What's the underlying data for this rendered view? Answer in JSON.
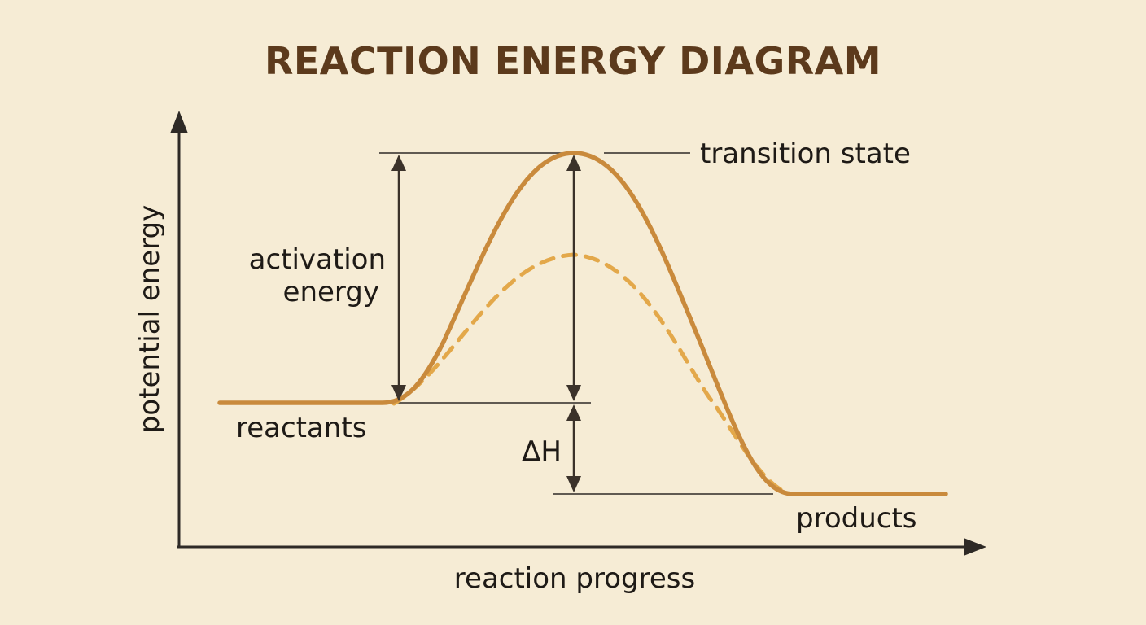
{
  "title": "REACTION ENERGY DIAGRAM",
  "axes": {
    "y_label": "potential energy",
    "x_label": "reaction progress"
  },
  "labels": {
    "transition_state": "transition state",
    "activation_energy_line1": "activation",
    "activation_energy_line2": "energy",
    "reactants": "reactants",
    "products": "products",
    "delta_h": "ΔH"
  },
  "colors": {
    "background": "#f6ecd5",
    "uncatalyzed_curve": "#c98a3c",
    "catalyzed_curve": "#e3a84a",
    "axis": "#2e2a26",
    "title": "#5c3a1c"
  }
}
